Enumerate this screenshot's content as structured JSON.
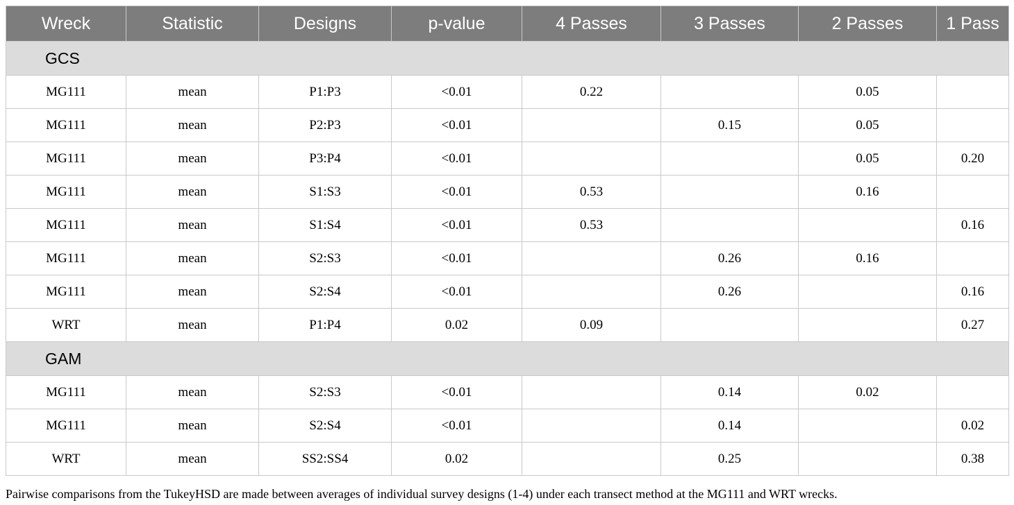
{
  "columns": [
    "Wreck",
    "Statistic",
    "Designs",
    "p-value",
    "4 Passes",
    "3 Passes",
    "2 Passes",
    "1 Pass"
  ],
  "sections": [
    {
      "label": "GCS",
      "rows": [
        [
          "MG111",
          "mean",
          "P1:P3",
          "<0.01",
          "0.22",
          "",
          "0.05",
          ""
        ],
        [
          "MG111",
          "mean",
          "P2:P3",
          "<0.01",
          "",
          "0.15",
          "0.05",
          ""
        ],
        [
          "MG111",
          "mean",
          "P3:P4",
          "<0.01",
          "",
          "",
          "0.05",
          "0.20"
        ],
        [
          "MG111",
          "mean",
          "S1:S3",
          "<0.01",
          "0.53",
          "",
          "0.16",
          ""
        ],
        [
          "MG111",
          "mean",
          "S1:S4",
          "<0.01",
          "0.53",
          "",
          "",
          "0.16"
        ],
        [
          "MG111",
          "mean",
          "S2:S3",
          "<0.01",
          "",
          "0.26",
          "0.16",
          ""
        ],
        [
          "MG111",
          "mean",
          "S2:S4",
          "<0.01",
          "",
          "0.26",
          "",
          "0.16"
        ],
        [
          "WRT",
          "mean",
          "P1:P4",
          "0.02",
          "0.09",
          "",
          "",
          "0.27"
        ]
      ]
    },
    {
      "label": "GAM",
      "rows": [
        [
          "MG111",
          "mean",
          "S2:S3",
          "<0.01",
          "",
          "0.14",
          "0.02",
          ""
        ],
        [
          "MG111",
          "mean",
          "S2:S4",
          "<0.01",
          "",
          "0.14",
          "",
          "0.02"
        ],
        [
          "WRT",
          "mean",
          "SS2:SS4",
          "0.02",
          "",
          "0.25",
          "",
          "0.38"
        ]
      ]
    }
  ],
  "caption": "Pairwise comparisons from the TukeyHSD are made between averages of individual survey designs (1-4) under each transect method at the MG111 and WRT wrecks.",
  "colors": {
    "header_bg": "#7d7d7d",
    "header_text": "#ffffff",
    "section_bg": "#dcdcdc",
    "border": "#c9c9c9"
  }
}
